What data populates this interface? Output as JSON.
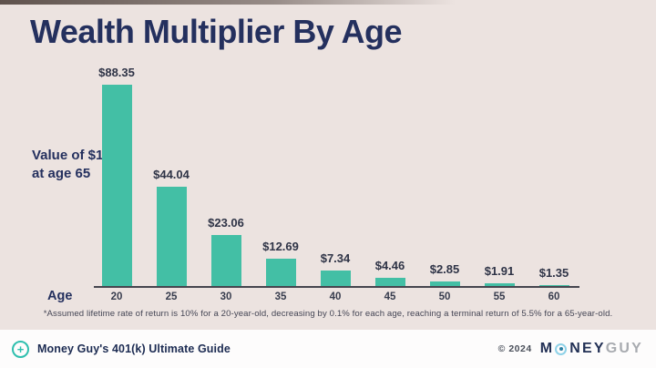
{
  "title": "Wealth Multiplier By Age",
  "y_axis_label_line1": "Value of $1",
  "y_axis_label_line2": "at age 65",
  "age_axis_label": "Age",
  "footnote": "*Assumed lifetime rate of return is 10% for a 20-year-old, decreasing by 0.1% for each age, reaching a terminal return of 5.5% for a 65-year-old.",
  "footer": {
    "left_text": "Money Guy's 401(k) Ultimate Guide",
    "plus_icon_glyph": "+",
    "copyright": "© 2024",
    "brand": {
      "part1": "M",
      "part2": "NEY",
      "part3": "GUY"
    }
  },
  "colors": {
    "background": "#ece3e0",
    "title_navy": "#24305e",
    "bar_teal": "#43bfa5",
    "footer_background": "#fdfcfc",
    "brand_blue_ring": "#8fd2e8",
    "badge_teal": "#2ebfae"
  },
  "chart_data": {
    "type": "bar",
    "title": "Wealth Multiplier By Age",
    "xlabel": "Age",
    "ylabel": "Value of $1 at age 65",
    "categories": [
      "20",
      "25",
      "30",
      "35",
      "40",
      "45",
      "50",
      "55",
      "60"
    ],
    "values": [
      88.35,
      44.04,
      23.06,
      12.69,
      7.34,
      4.46,
      2.85,
      1.91,
      1.35
    ],
    "value_labels": [
      "$88.35",
      "$44.04",
      "$23.06",
      "$12.69",
      "$7.34",
      "$4.46",
      "$2.85",
      "$1.91",
      "$1.35"
    ],
    "ylim": [
      0,
      90
    ],
    "grid": false,
    "legend": null,
    "bar_color": "#43bfa5",
    "footnote": "*Assumed lifetime rate of return is 10% for a 20-year-old, decreasing by 0.1% for each age, reaching a terminal return of 5.5% for a 65-year-old."
  }
}
